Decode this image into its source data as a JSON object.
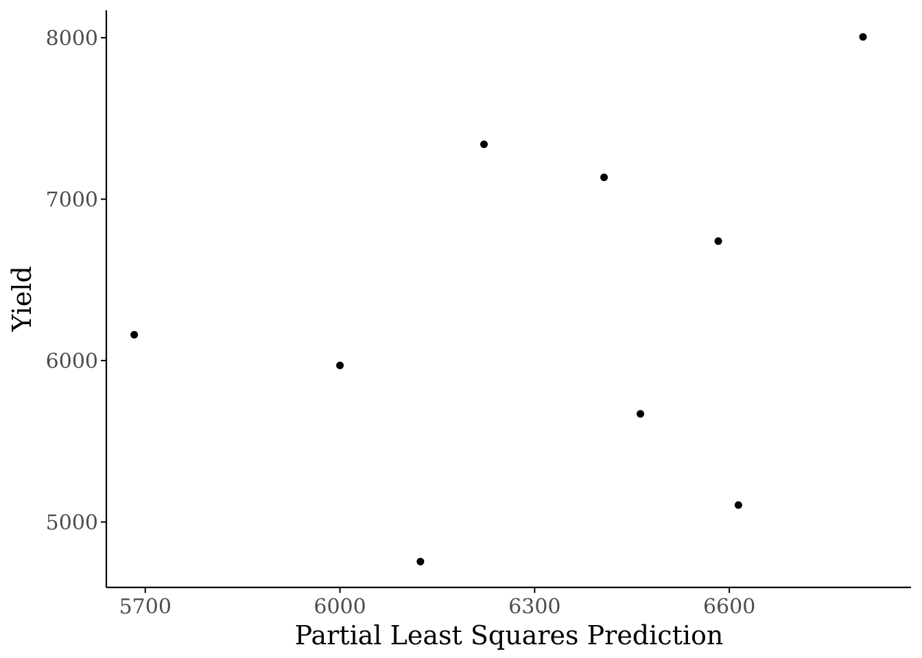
{
  "chart_data": {
    "type": "scatter",
    "title": "",
    "xlabel": "Partial Least Squares Prediction",
    "ylabel": "Yield",
    "xlim": [
      5640,
      6880
    ],
    "ylim": [
      4595,
      8170
    ],
    "x_ticks": [
      5700,
      6000,
      6300,
      6600
    ],
    "y_ticks": [
      5000,
      6000,
      7000,
      8000
    ],
    "grid": false,
    "legend": "none",
    "point_color": "#000000",
    "axis_color": "#000000",
    "tick_label_color": "#4d4d4d",
    "series": [
      {
        "x": [
          5683,
          6000,
          6124,
          6222,
          6407,
          6463,
          6583,
          6614,
          6806
        ],
        "y": [
          6160,
          5970,
          4755,
          7340,
          7135,
          5670,
          6740,
          5105,
          8005
        ]
      }
    ]
  }
}
